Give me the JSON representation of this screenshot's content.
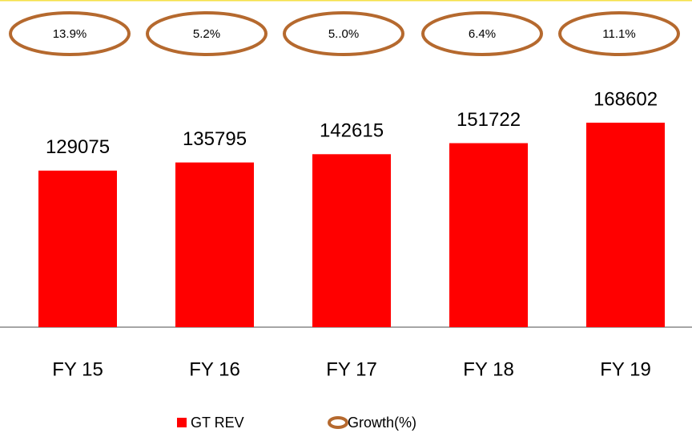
{
  "chart_data": {
    "type": "bar",
    "categories": [
      "FY 15",
      "FY 16",
      "FY 17",
      "FY 18",
      "FY 19"
    ],
    "series": [
      {
        "name": "GT REV",
        "color": "#ff0000",
        "values": [
          129075,
          135795,
          142615,
          151722,
          168602
        ]
      },
      {
        "name": "Growth(%)",
        "color": "#b5692e",
        "values": [
          13.9,
          5.2,
          5.0,
          6.4,
          11.1
        ],
        "value_labels": [
          "13.9%",
          "5.2%",
          "5..0%",
          "6.4%",
          "11.1%"
        ]
      }
    ]
  }
}
